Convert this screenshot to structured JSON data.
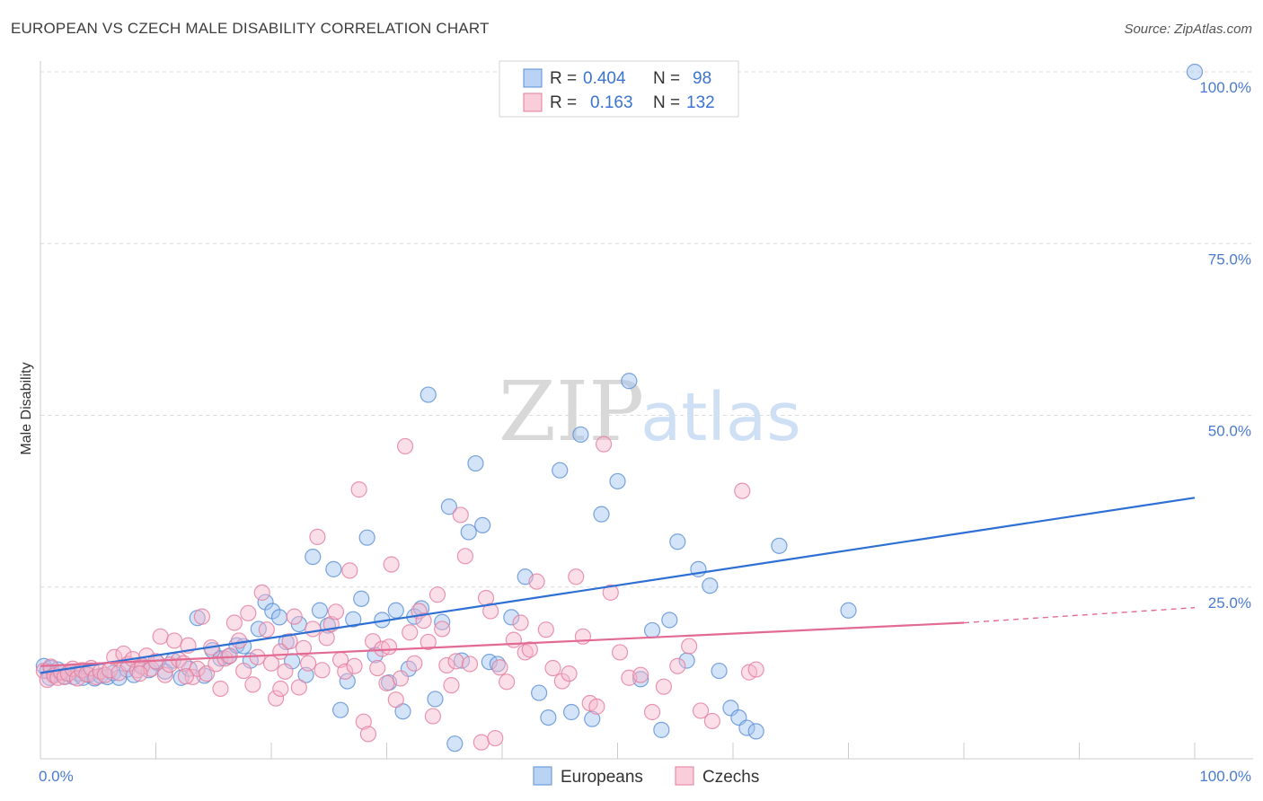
{
  "header": {
    "title": "EUROPEAN VS CZECH MALE DISABILITY CORRELATION CHART",
    "source": "Source: ZipAtlas.com"
  },
  "watermark": {
    "zip": "ZIP",
    "atlas": "atlas"
  },
  "legend": {
    "rows": [
      {
        "r_label": "R =",
        "r_value": "0.404",
        "n_label": "N =",
        "n_value": "98",
        "color": "#9dc0ef",
        "stroke": "#5b8fd6"
      },
      {
        "r_label": "R =",
        "r_value": "0.163",
        "n_label": "N =",
        "n_value": "132",
        "color": "#f7b8cb",
        "stroke": "#e37d9e"
      }
    ]
  },
  "bottom_legend": [
    {
      "label": "Europeans",
      "color": "#9dc0ef",
      "stroke": "#5b8fd6"
    },
    {
      "label": "Czechs",
      "color": "#f7b8cb",
      "stroke": "#e37d9e"
    }
  ],
  "chart_data": {
    "type": "scatter",
    "title": "EUROPEAN VS CZECH MALE DISABILITY CORRELATION CHART",
    "xlabel": "",
    "ylabel": "Male Disability",
    "xlim": [
      0,
      100
    ],
    "ylim": [
      0,
      100
    ],
    "x_tick_labels": [
      "0.0%",
      "100.0%"
    ],
    "y_ticks": [
      25,
      50,
      75,
      100
    ],
    "y_tick_labels": [
      "25.0%",
      "50.0%",
      "75.0%",
      "100.0%"
    ],
    "grid": "horizontal dashed",
    "legend_position": "top-center",
    "series": [
      {
        "name": "Europeans",
        "color": "#5b8fd6",
        "fill": "#9dc0ef",
        "trend": {
          "x": [
            0,
            100
          ],
          "y": [
            12.5,
            38
          ],
          "color": "#2e6fd4"
        },
        "points": [
          [
            0.3,
            13.5
          ],
          [
            0.6,
            12.8
          ],
          [
            0.9,
            13.2
          ],
          [
            1.2,
            12.3
          ],
          [
            1.5,
            13.0
          ],
          [
            1.8,
            12.5
          ],
          [
            2.1,
            12.0
          ],
          [
            2.5,
            12.6
          ],
          [
            2.9,
            11.9
          ],
          [
            3.3,
            12.4
          ],
          [
            3.7,
            11.8
          ],
          [
            4.2,
            12.2
          ],
          [
            4.7,
            11.7
          ],
          [
            5.2,
            12.1
          ],
          [
            5.8,
            11.9
          ],
          [
            6.3,
            12.5
          ],
          [
            6.8,
            11.8
          ],
          [
            7.5,
            13.0
          ],
          [
            8.1,
            12.2
          ],
          [
            8.8,
            13.6
          ],
          [
            9.4,
            12.9
          ],
          [
            10.1,
            14.0
          ],
          [
            10.8,
            12.7
          ],
          [
            11.5,
            14.3
          ],
          [
            12.2,
            11.8
          ],
          [
            12.9,
            13.1
          ],
          [
            13.6,
            20.5
          ],
          [
            14.2,
            12.1
          ],
          [
            14.9,
            15.8
          ],
          [
            15.6,
            14.6
          ],
          [
            16.3,
            14.9
          ],
          [
            17.0,
            16.5
          ],
          [
            17.6,
            16.4
          ],
          [
            18.2,
            14.3
          ],
          [
            18.9,
            18.9
          ],
          [
            19.5,
            22.8
          ],
          [
            20.1,
            21.5
          ],
          [
            20.7,
            20.6
          ],
          [
            21.3,
            17.0
          ],
          [
            21.8,
            14.2
          ],
          [
            22.4,
            19.6
          ],
          [
            23.0,
            12.2
          ],
          [
            23.6,
            29.4
          ],
          [
            24.2,
            21.6
          ],
          [
            24.9,
            19.4
          ],
          [
            25.4,
            27.6
          ],
          [
            26.0,
            7.1
          ],
          [
            26.6,
            11.3
          ],
          [
            27.1,
            20.3
          ],
          [
            27.8,
            23.3
          ],
          [
            28.3,
            32.2
          ],
          [
            29.0,
            15.1
          ],
          [
            29.6,
            20.2
          ],
          [
            30.2,
            11.1
          ],
          [
            30.8,
            21.6
          ],
          [
            31.4,
            6.9
          ],
          [
            31.9,
            13.1
          ],
          [
            32.4,
            20.7
          ],
          [
            33.0,
            21.9
          ],
          [
            33.6,
            53.0
          ],
          [
            34.2,
            8.7
          ],
          [
            34.8,
            19.9
          ],
          [
            35.4,
            36.7
          ],
          [
            35.9,
            2.2
          ],
          [
            36.5,
            14.3
          ],
          [
            37.1,
            33.0
          ],
          [
            37.7,
            43.0
          ],
          [
            38.3,
            34.0
          ],
          [
            38.9,
            14.1
          ],
          [
            39.6,
            13.8
          ],
          [
            40.8,
            20.6
          ],
          [
            42.0,
            26.5
          ],
          [
            43.2,
            9.6
          ],
          [
            44.0,
            6.0
          ],
          [
            45.0,
            42.0
          ],
          [
            46.0,
            6.8
          ],
          [
            46.8,
            47.2
          ],
          [
            47.8,
            5.8
          ],
          [
            48.6,
            35.6
          ],
          [
            50.0,
            40.4
          ],
          [
            51.0,
            55.0
          ],
          [
            52.0,
            11.6
          ],
          [
            53.0,
            18.7
          ],
          [
            53.8,
            4.2
          ],
          [
            54.5,
            20.2
          ],
          [
            55.2,
            31.6
          ],
          [
            56.0,
            14.3
          ],
          [
            57.0,
            27.6
          ],
          [
            58.0,
            25.2
          ],
          [
            58.8,
            12.8
          ],
          [
            59.8,
            7.4
          ],
          [
            60.5,
            6.0
          ],
          [
            61.2,
            4.5
          ],
          [
            62.0,
            4.0
          ],
          [
            64.0,
            31.0
          ],
          [
            70.0,
            21.6
          ],
          [
            100.0,
            100.0
          ],
          [
            0.8,
            11.8
          ]
        ]
      },
      {
        "name": "Czechs",
        "color": "#e37d9e",
        "fill": "#f7b8cb",
        "trend": {
          "x": [
            0,
            80
          ],
          "y": [
            13.5,
            19.8
          ],
          "dashed_to": [
            100,
            22.0
          ],
          "color": "#e26a93"
        },
        "points": [
          [
            0.3,
            12.8
          ],
          [
            0.6,
            11.5
          ],
          [
            0.9,
            13.4
          ],
          [
            1.2,
            12.1
          ],
          [
            1.5,
            11.8
          ],
          [
            1.8,
            12.6
          ],
          [
            2.1,
            11.9
          ],
          [
            2.4,
            12.4
          ],
          [
            2.8,
            13.1
          ],
          [
            3.2,
            11.7
          ],
          [
            3.6,
            12.9
          ],
          [
            4.0,
            12.3
          ],
          [
            4.4,
            13.2
          ],
          [
            4.8,
            11.9
          ],
          [
            5.2,
            12.7
          ],
          [
            5.6,
            12.2
          ],
          [
            6.0,
            12.9
          ],
          [
            6.4,
            14.8
          ],
          [
            6.8,
            12.5
          ],
          [
            7.2,
            15.3
          ],
          [
            7.6,
            13.8
          ],
          [
            8.0,
            14.5
          ],
          [
            8.4,
            12.9
          ],
          [
            8.8,
            13.4
          ],
          [
            9.2,
            15.0
          ],
          [
            9.6,
            13.1
          ],
          [
            10.0,
            14.2
          ],
          [
            10.4,
            17.8
          ],
          [
            10.8,
            12.2
          ],
          [
            11.2,
            13.7
          ],
          [
            11.6,
            17.2
          ],
          [
            12.0,
            14.4
          ],
          [
            12.4,
            13.9
          ],
          [
            12.8,
            16.5
          ],
          [
            13.2,
            11.9
          ],
          [
            13.6,
            13.1
          ],
          [
            14.0,
            20.7
          ],
          [
            14.4,
            12.4
          ],
          [
            14.8,
            16.2
          ],
          [
            15.2,
            13.8
          ],
          [
            15.6,
            10.2
          ],
          [
            16.0,
            14.6
          ],
          [
            16.4,
            15.0
          ],
          [
            16.8,
            19.8
          ],
          [
            17.2,
            17.2
          ],
          [
            17.6,
            12.8
          ],
          [
            18.0,
            21.2
          ],
          [
            18.4,
            10.8
          ],
          [
            18.8,
            14.8
          ],
          [
            19.2,
            24.2
          ],
          [
            19.6,
            18.8
          ],
          [
            20.0,
            13.9
          ],
          [
            20.4,
            8.8
          ],
          [
            20.8,
            15.6
          ],
          [
            21.2,
            12.7
          ],
          [
            21.6,
            17.1
          ],
          [
            22.0,
            20.7
          ],
          [
            22.4,
            10.4
          ],
          [
            22.8,
            16.1
          ],
          [
            23.2,
            13.9
          ],
          [
            23.6,
            18.9
          ],
          [
            24.0,
            32.3
          ],
          [
            24.4,
            12.9
          ],
          [
            24.8,
            17.6
          ],
          [
            25.2,
            19.6
          ],
          [
            25.6,
            21.4
          ],
          [
            26.0,
            14.4
          ],
          [
            26.4,
            12.7
          ],
          [
            26.8,
            27.4
          ],
          [
            27.2,
            13.5
          ],
          [
            27.6,
            39.2
          ],
          [
            28.0,
            5.4
          ],
          [
            28.4,
            3.6
          ],
          [
            28.8,
            17.1
          ],
          [
            29.2,
            13.2
          ],
          [
            29.6,
            16.0
          ],
          [
            30.0,
            11.0
          ],
          [
            30.4,
            28.3
          ],
          [
            30.8,
            8.6
          ],
          [
            31.2,
            11.7
          ],
          [
            31.6,
            45.5
          ],
          [
            32.0,
            18.4
          ],
          [
            32.4,
            13.9
          ],
          [
            32.8,
            21.5
          ],
          [
            33.2,
            20.1
          ],
          [
            33.6,
            17.0
          ],
          [
            34.0,
            6.2
          ],
          [
            34.4,
            23.9
          ],
          [
            34.8,
            18.9
          ],
          [
            35.2,
            13.6
          ],
          [
            35.6,
            10.7
          ],
          [
            36.0,
            14.2
          ],
          [
            36.4,
            35.5
          ],
          [
            36.8,
            29.5
          ],
          [
            37.2,
            13.8
          ],
          [
            38.2,
            2.4
          ],
          [
            38.6,
            23.4
          ],
          [
            39.0,
            21.5
          ],
          [
            39.4,
            3.0
          ],
          [
            39.8,
            13.3
          ],
          [
            40.4,
            11.2
          ],
          [
            41.0,
            17.3
          ],
          [
            41.6,
            19.8
          ],
          [
            42.0,
            15.5
          ],
          [
            42.4,
            15.9
          ],
          [
            43.0,
            25.8
          ],
          [
            43.8,
            18.8
          ],
          [
            44.4,
            13.2
          ],
          [
            45.2,
            11.3
          ],
          [
            45.8,
            12.4
          ],
          [
            46.4,
            26.5
          ],
          [
            47.0,
            17.8
          ],
          [
            47.6,
            8.1
          ],
          [
            48.2,
            7.6
          ],
          [
            48.8,
            45.8
          ],
          [
            49.4,
            24.2
          ],
          [
            50.2,
            15.5
          ],
          [
            51.0,
            11.8
          ],
          [
            52.0,
            12.2
          ],
          [
            53.0,
            6.8
          ],
          [
            54.0,
            10.5
          ],
          [
            55.2,
            13.5
          ],
          [
            56.2,
            16.4
          ],
          [
            57.2,
            7.0
          ],
          [
            58.2,
            5.5
          ],
          [
            60.8,
            39.0
          ],
          [
            61.4,
            12.6
          ],
          [
            62.0,
            13.0
          ],
          [
            30.2,
            16.3
          ],
          [
            20.8,
            10.2
          ],
          [
            12.6,
            12.0
          ],
          [
            8.6,
            12.4
          ]
        ]
      }
    ]
  }
}
